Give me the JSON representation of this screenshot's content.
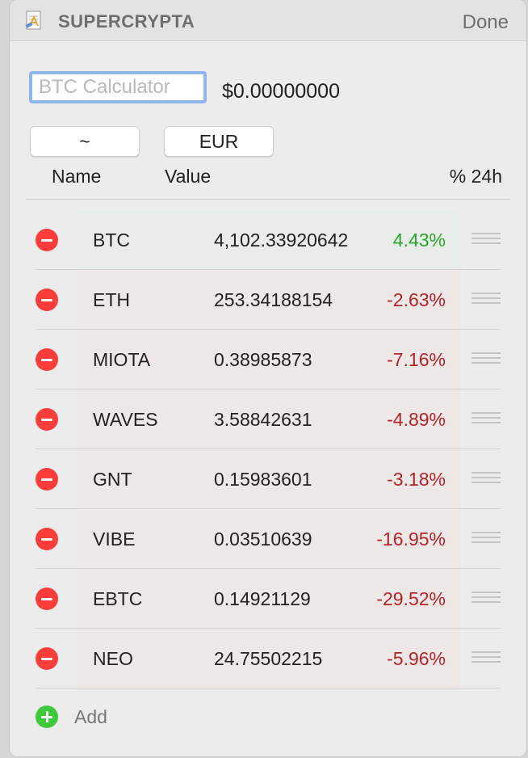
{
  "app": {
    "title": "SUPERCRYPTA",
    "done_label": "Done",
    "icon": "app-icon"
  },
  "calculator": {
    "placeholder": "BTC Calculator",
    "value": "",
    "result": "$0.00000000"
  },
  "buttons": {
    "tilde_label": "~",
    "currency_label": "EUR"
  },
  "columns": {
    "name": "Name",
    "value": "Value",
    "change": "% 24h"
  },
  "coins": [
    {
      "name": "BTC",
      "value": "4,102.33920642",
      "change": "4.43%",
      "direction": "up"
    },
    {
      "name": "ETH",
      "value": "253.34188154",
      "change": "-2.63%",
      "direction": "down"
    },
    {
      "name": "MIOTA",
      "value": "0.38985873",
      "change": "-7.16%",
      "direction": "down"
    },
    {
      "name": "WAVES",
      "value": "3.58842631",
      "change": "-4.89%",
      "direction": "down"
    },
    {
      "name": "GNT",
      "value": "0.15983601",
      "change": "-3.18%",
      "direction": "down"
    },
    {
      "name": "VIBE",
      "value": "0.03510639",
      "change": "-16.95%",
      "direction": "down"
    },
    {
      "name": "EBTC",
      "value": "0.14921129",
      "change": "-29.52%",
      "direction": "down"
    },
    {
      "name": "NEO",
      "value": "24.75502215",
      "change": "-5.96%",
      "direction": "down"
    }
  ],
  "add_label": "Add",
  "colors": {
    "positive": "#2aa52f",
    "negative": "#b3242a",
    "remove": "#fc3d39",
    "add": "#3ec93c",
    "focus_ring": "#8fb6ec"
  },
  "icons": {
    "remove": "minus-circle-icon",
    "add": "plus-circle-icon",
    "drag": "drag-handle-icon"
  }
}
